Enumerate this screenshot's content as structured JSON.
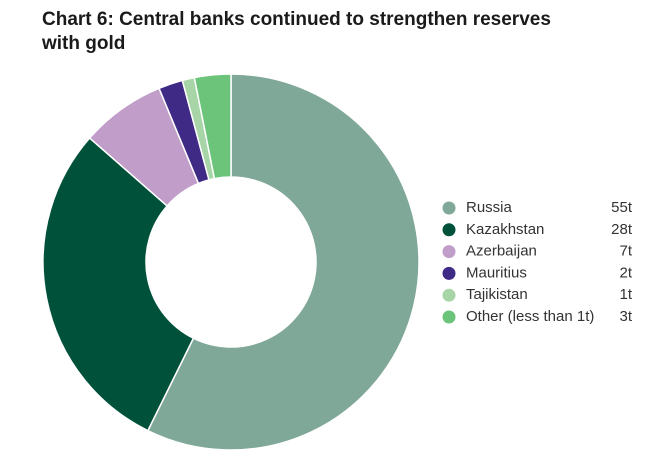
{
  "chart_data": {
    "type": "donut",
    "title": [
      "Chart 6: Central banks continued to strengthen reserves",
      "with gold"
    ],
    "categories": [
      "Russia",
      "Kazakhstan",
      "Azerbaijan",
      "Mauritius",
      "Tajikistan",
      "Other (less than 1t)"
    ],
    "values": [
      55,
      28,
      7,
      2,
      1,
      3
    ],
    "value_labels": [
      "55t",
      "28t",
      "7t",
      "2t",
      "1t",
      "3t"
    ],
    "colors": [
      "#7fa898",
      "#00513a",
      "#c09ec9",
      "#3f2a85",
      "#a8d5a8",
      "#6cc47a"
    ],
    "legend": "right"
  }
}
